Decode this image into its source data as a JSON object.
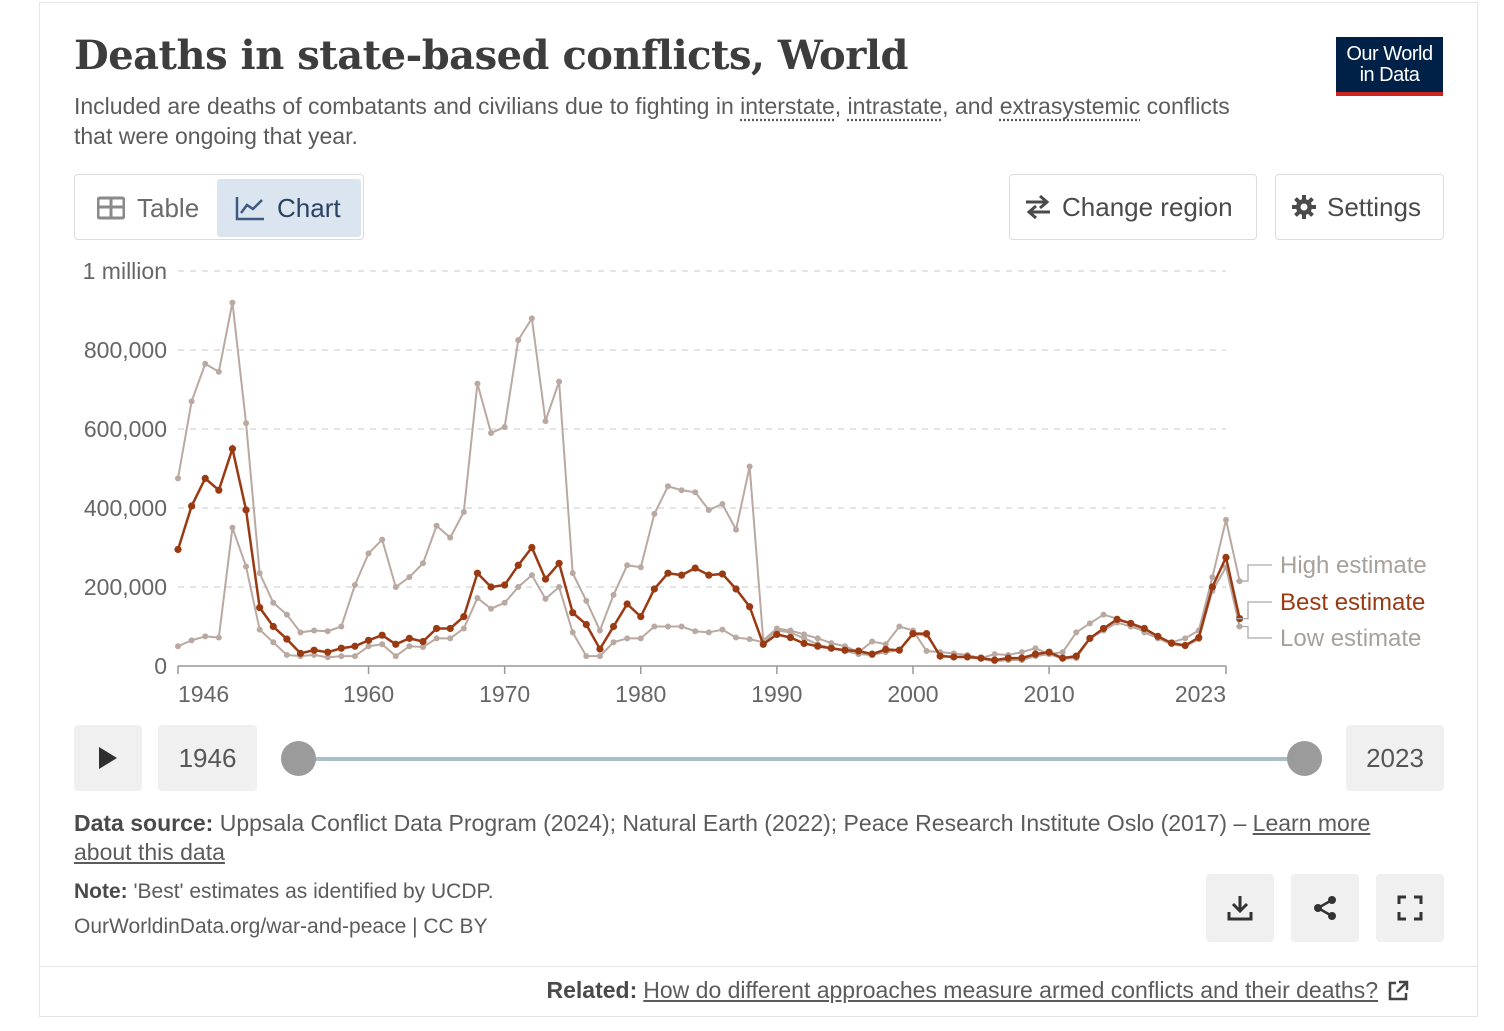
{
  "header": {
    "title": "Deaths in state-based conflicts, World",
    "subtitle_before": "Included are deaths of combatants and civilians due to fighting in ",
    "term1": "interstate",
    "sep1": ", ",
    "term2": "intrastate",
    "sep2": ", and ",
    "term3": "extrasystemic",
    "subtitle_after": " conflicts that were ongoing that year.",
    "logo_line1": "Our World",
    "logo_line2": "in Data"
  },
  "controls": {
    "tab_table": "Table",
    "tab_chart": "Chart",
    "change_region": "Change region",
    "settings": "Settings",
    "icons": {
      "table": "table-icon",
      "chart": "line-chart-icon",
      "region": "swap-arrows-icon",
      "settings": "gear-icon"
    }
  },
  "timeline": {
    "start_label": "1946",
    "end_label": "2023",
    "range_start_fraction": 0,
    "range_end_fraction": 1
  },
  "footer": {
    "source_label": "Data source:",
    "source_text": " Uppsala Conflict Data Program (2024); Natural Earth (2022); Peace Research Institute Oslo (2017) – ",
    "source_link": "Learn more about this data",
    "note_label": "Note:",
    "note_text": " 'Best' estimates as identified by UCDP.",
    "url_text": "OurWorldinData.org/war-and-peace | CC BY",
    "related_label": "Related:",
    "related_link": "How do different approaches measure armed conflicts and their deaths?",
    "icons": [
      "download-icon",
      "share-icon",
      "fullscreen-icon",
      "external-link-icon"
    ]
  },
  "chart_data": {
    "type": "line",
    "title": "Deaths in state-based conflicts, World",
    "x_start": 1946,
    "x_end": 2023,
    "xlim": [
      1946,
      2023
    ],
    "ylim": [
      0,
      1000000
    ],
    "x_ticks": [
      1946,
      1960,
      1970,
      1980,
      1990,
      2000,
      2010,
      2023
    ],
    "x_tick_labels": [
      "1946",
      "1960",
      "1970",
      "1980",
      "1990",
      "2000",
      "2010",
      "2023"
    ],
    "y_ticks": [
      0,
      200000,
      400000,
      600000,
      800000,
      1000000
    ],
    "y_tick_labels": [
      "0",
      "200,000",
      "400,000",
      "600,000",
      "800,000",
      "1 million"
    ],
    "grid": "horizontal dashed",
    "legend": "right, end-of-line labels",
    "series": [
      {
        "name": "High estimate",
        "color": "#b9a9a1",
        "values": [
          475000,
          670000,
          765000,
          745000,
          920000,
          615000,
          235000,
          160000,
          130000,
          85000,
          90000,
          88000,
          100000,
          205000,
          285000,
          320000,
          200000,
          225000,
          260000,
          355000,
          325000,
          390000,
          715000,
          590000,
          605000,
          825000,
          880000,
          620000,
          720000,
          235000,
          165000,
          90000,
          180000,
          255000,
          250000,
          385000,
          455000,
          445000,
          440000,
          395000,
          410000,
          345000,
          505000,
          65000,
          95000,
          90000,
          80000,
          70000,
          58000,
          50000,
          35000,
          62000,
          55000,
          100000,
          90000,
          38000,
          35000,
          32000,
          28000,
          20000,
          30000,
          28000,
          35000,
          45000,
          30000,
          35000,
          85000,
          108000,
          130000,
          120000,
          108000,
          85000,
          70000,
          60000,
          70000,
          90000,
          225000,
          370000,
          215000
        ]
      },
      {
        "name": "Best estimate",
        "color": "#9a3a13",
        "values": [
          295000,
          405000,
          475000,
          445000,
          550000,
          395000,
          148000,
          100000,
          68000,
          32000,
          40000,
          35000,
          45000,
          50000,
          65000,
          78000,
          55000,
          70000,
          62000,
          95000,
          95000,
          125000,
          235000,
          200000,
          205000,
          255000,
          300000,
          220000,
          260000,
          135000,
          105000,
          43000,
          100000,
          157000,
          125000,
          195000,
          235000,
          230000,
          248000,
          230000,
          233000,
          195000,
          150000,
          55000,
          80000,
          72000,
          57000,
          50000,
          45000,
          40000,
          38000,
          30000,
          42000,
          40000,
          82000,
          82000,
          25000,
          23000,
          23000,
          20000,
          15000,
          20000,
          20000,
          30000,
          35000,
          20000,
          25000,
          70000,
          95000,
          118000,
          108000,
          95000,
          75000,
          58000,
          52000,
          72000,
          200000,
          275000,
          120000
        ]
      },
      {
        "name": "Low estimate",
        "color": "#b9a9a1",
        "values": [
          50000,
          65000,
          75000,
          72000,
          350000,
          252000,
          92000,
          60000,
          28000,
          25000,
          28000,
          22000,
          25000,
          25000,
          50000,
          55000,
          25000,
          50000,
          48000,
          70000,
          70000,
          95000,
          172000,
          145000,
          160000,
          200000,
          230000,
          170000,
          200000,
          85000,
          25000,
          25000,
          60000,
          70000,
          70000,
          100000,
          100000,
          100000,
          88000,
          85000,
          92000,
          72000,
          68000,
          60000,
          90000,
          85000,
          70000,
          55000,
          45000,
          38000,
          30000,
          28000,
          35000,
          40000,
          80000,
          78000,
          28000,
          22000,
          22000,
          18000,
          12000,
          15000,
          15000,
          25000,
          30000,
          18000,
          20000,
          70000,
          90000,
          110000,
          100000,
          88000,
          70000,
          55000,
          50000,
          68000,
          190000,
          250000,
          100000
        ]
      }
    ]
  }
}
